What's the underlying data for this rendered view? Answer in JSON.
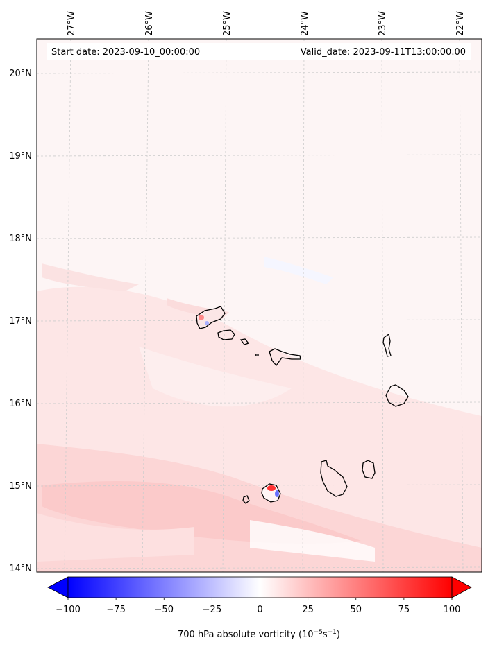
{
  "header": {
    "start_date": "Start date: 2023-09-10_00:00:00",
    "valid_date": "Valid_date: 2023-09-11T13:00:00.00"
  },
  "lon_labels": [
    "27°W",
    "26°W",
    "25°W",
    "24°W",
    "23°W",
    "22°W"
  ],
  "lat_labels": [
    "20°N",
    "19°N",
    "18°N",
    "17°N",
    "16°N",
    "15°N",
    "14°N"
  ],
  "colorbar": {
    "ticks": [
      "−100",
      "−75",
      "−50",
      "−25",
      "0",
      "25",
      "50",
      "75",
      "100"
    ],
    "values": [
      -100,
      -75,
      -50,
      -25,
      0,
      25,
      50,
      75,
      100
    ],
    "label_text": "700 hPa absolute vorticity (10",
    "label_exp1": "−5",
    "label_mid": "s",
    "label_exp2": "−1",
    "label_close": ")",
    "colormap": "bwr",
    "min_color": "#0000ff",
    "mid_color": "#ffffff",
    "max_color": "#ff0000"
  },
  "colors": {
    "background_field": "#fdf5f5",
    "land_outline": "#000000",
    "gridline": "#cccccc"
  }
}
